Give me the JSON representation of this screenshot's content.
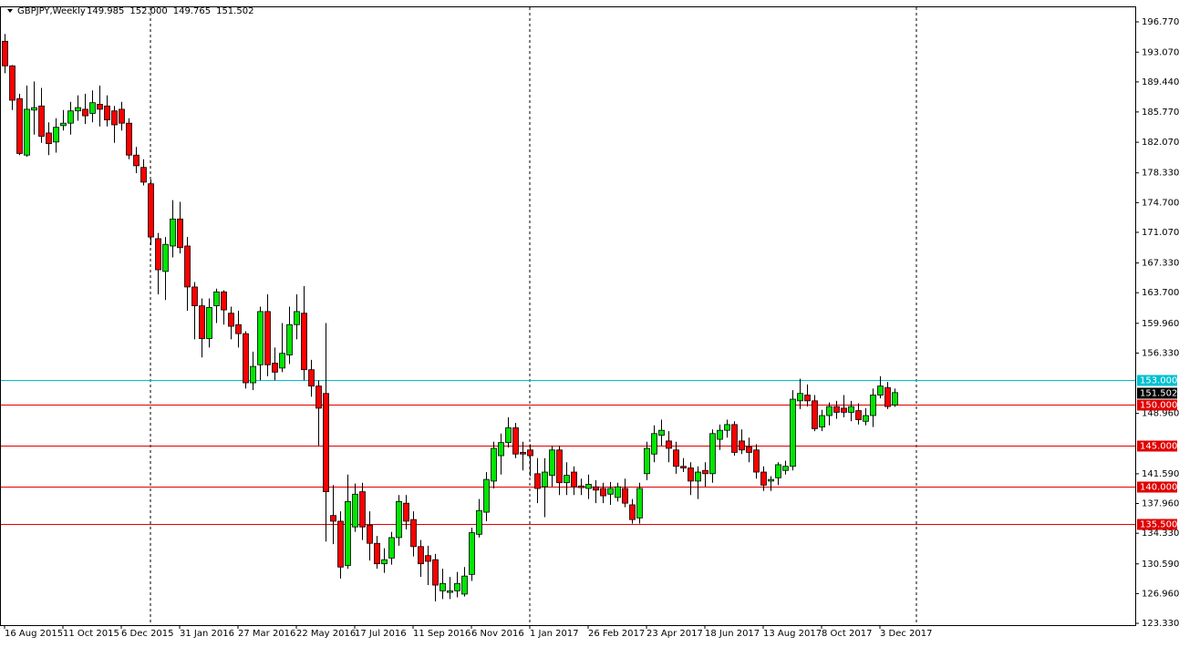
{
  "chart_data": {
    "type": "candlestick",
    "title": "GBPJPY,Weekly",
    "header_values": [
      {
        "value": 149.985,
        "label": "149.985"
      },
      {
        "value": 152.0,
        "label": "152.000"
      },
      {
        "value": 149.765,
        "label": "149.765"
      },
      {
        "value": 151.502,
        "label": "151.502"
      }
    ],
    "categories": [
      "16 Aug 2015",
      null,
      null,
      null,
      null,
      null,
      null,
      null,
      "11 Oct 2015",
      null,
      null,
      null,
      null,
      null,
      null,
      null,
      "6 Dec 2015",
      null,
      null,
      null,
      null,
      null,
      null,
      null,
      "31 Jan 2016",
      null,
      null,
      null,
      null,
      null,
      null,
      null,
      "27 Mar 2016",
      null,
      null,
      null,
      null,
      null,
      null,
      null,
      "22 May 2016",
      null,
      null,
      null,
      null,
      null,
      null,
      null,
      "17 Jul 2016",
      null,
      null,
      null,
      null,
      null,
      null,
      null,
      "11 Sep 2016",
      null,
      null,
      null,
      null,
      null,
      null,
      null,
      "6 Nov 2016",
      null,
      null,
      null,
      null,
      null,
      null,
      null,
      "1 Jan 2017",
      null,
      null,
      null,
      null,
      null,
      null,
      null,
      "26 Feb 2017",
      null,
      null,
      null,
      null,
      null,
      null,
      null,
      "23 Apr 2017",
      null,
      null,
      null,
      null,
      null,
      null,
      null,
      "18 Jun 2017",
      null,
      null,
      null,
      null,
      null,
      null,
      null,
      "13 Aug 2017",
      null,
      null,
      null,
      null,
      null,
      null,
      null,
      "8 Oct 2017",
      null,
      null,
      null,
      null,
      null,
      null,
      null,
      "3 Dec 2017",
      null,
      null
    ],
    "open": [
      194.4,
      191.4,
      187.4,
      180.5,
      186,
      186.5,
      183.2,
      182.1,
      184.1,
      184.4,
      185.9,
      186.1,
      185.6,
      186.7,
      186.5,
      185.9,
      186.1,
      184.4,
      180.5,
      179,
      177,
      170.3,
      166.3,
      169.4,
      172.7,
      169.4,
      164.4,
      162.1,
      158.1,
      162.1,
      163.8,
      161.2,
      159.8,
      158.7,
      152.7,
      154.9,
      161.4,
      155.1,
      154.5,
      156.1,
      159.8,
      161.2,
      154.3,
      152.3,
      151.4,
      136.5,
      135.8,
      130.4,
      135.1,
      139.4,
      135.3,
      133.1,
      130.6,
      131.3,
      133.8,
      138,
      136,
      132.7,
      131.6,
      131.1,
      127.3,
      127.1,
      127.3,
      126.9,
      129.3,
      134.2,
      136.9,
      140.7,
      143.8,
      145.4,
      147.2,
      144.2,
      144.5,
      141.6,
      140,
      141.4,
      144.5,
      140.5,
      141.8,
      140.1,
      139.8,
      140,
      139.8,
      139.1,
      138.7,
      139.8,
      137.8,
      136.2,
      141.6,
      144,
      146.3,
      145.6,
      144.5,
      142.5,
      142.3,
      140.7,
      142,
      141.6,
      145.8,
      146.9,
      147.6,
      145.6,
      144.9,
      144.5,
      141.8,
      140.7,
      141.1,
      142,
      142.5,
      150.5,
      151.2,
      150.5,
      147.3,
      148.7,
      149.8,
      149.6,
      149.1,
      149.3,
      148,
      148.7,
      151.2,
      152.1,
      149.985
    ],
    "high": [
      195.3,
      191.5,
      188,
      189,
      189.5,
      188.7,
      184.5,
      185,
      186,
      187,
      187.8,
      188,
      188.4,
      189,
      187.8,
      186.5,
      187,
      185,
      181.5,
      180,
      177.5,
      171,
      170.5,
      175,
      174.8,
      170.5,
      165,
      163,
      163,
      164.2,
      164,
      162,
      161.5,
      159,
      156.5,
      162,
      163.5,
      157,
      160,
      162,
      163.5,
      164.5,
      155.5,
      153,
      160,
      140.2,
      137,
      141.5,
      140.4,
      140.5,
      137,
      134,
      132.5,
      134.5,
      139,
      139,
      137,
      133.5,
      132.8,
      131.8,
      130,
      129,
      129.6,
      130.2,
      135,
      138.5,
      141.8,
      145.5,
      146.5,
      148.5,
      147.8,
      145.5,
      145.2,
      143.5,
      143.5,
      145,
      145,
      143,
      142.5,
      141,
      141.5,
      140.8,
      140.5,
      140.6,
      140.5,
      141,
      138.5,
      140.5,
      145.5,
      147.5,
      148.2,
      146.8,
      145.5,
      143.5,
      143,
      142.5,
      143,
      147,
      147.6,
      148.2,
      148,
      147,
      146,
      145.2,
      142.5,
      141.3,
      143,
      143.2,
      151.8,
      153.2,
      152.5,
      151.2,
      149.4,
      150.3,
      150.5,
      151.2,
      150.5,
      150.2,
      149.6,
      152,
      153.5,
      152.8,
      152.0
    ],
    "low": [
      190.5,
      186,
      180.5,
      180.3,
      183,
      182,
      180.5,
      180.8,
      183.5,
      183,
      184.7,
      184.3,
      184.5,
      184,
      184,
      182,
      183.5,
      180,
      178.3,
      176.8,
      169.5,
      163.5,
      162.8,
      168,
      168.5,
      161.5,
      158,
      155.8,
      157,
      160,
      159.8,
      158,
      157,
      152,
      151.8,
      153,
      153.5,
      153,
      154,
      155,
      158,
      153,
      151,
      145,
      133.3,
      133,
      128.8,
      130,
      134.5,
      133.5,
      131,
      130,
      129.5,
      130.5,
      132.8,
      134.8,
      131.5,
      129,
      128,
      126,
      126.3,
      126.3,
      126.5,
      126.6,
      128.5,
      133.8,
      135.8,
      139.8,
      141.5,
      144.8,
      143.5,
      142,
      141.3,
      138,
      136.3,
      140,
      139,
      139,
      139,
      139,
      138.5,
      138,
      138,
      137.8,
      138.2,
      137.5,
      135.5,
      135.5,
      140.8,
      143,
      145,
      143,
      141.6,
      141.8,
      139,
      138.5,
      140,
      140.5,
      144.5,
      146,
      143.8,
      144,
      143,
      141,
      139.5,
      139.5,
      140.2,
      141.5,
      142,
      149.5,
      149.8,
      146.8,
      146.8,
      147.5,
      148.3,
      148.5,
      148,
      147.6,
      147.5,
      147.3,
      150.8,
      149.5,
      149.765
    ],
    "close": [
      191.4,
      187.2,
      180.7,
      186.1,
      186.3,
      182.8,
      181.9,
      183.9,
      184.4,
      185.9,
      186.3,
      185.3,
      186.9,
      186.1,
      184.8,
      184.2,
      184.4,
      180.5,
      179.2,
      177.2,
      170.5,
      166.5,
      169.6,
      172.7,
      169.2,
      164.4,
      162.1,
      158.1,
      161.9,
      163.8,
      161.6,
      159.6,
      158.7,
      152.7,
      154.7,
      161.4,
      154.9,
      154,
      156.3,
      159.8,
      161.4,
      154.3,
      152.3,
      149.6,
      139.4,
      135.8,
      130.2,
      138.2,
      139.1,
      135.1,
      133.1,
      130.6,
      131.1,
      133.8,
      138.2,
      135.8,
      132.7,
      130.6,
      130.9,
      128,
      128.2,
      127.3,
      128.2,
      129.1,
      134.4,
      137.1,
      140.9,
      144.7,
      145.4,
      147.2,
      144,
      144,
      143.8,
      139.8,
      141.8,
      144.5,
      140.5,
      141.4,
      140,
      139.9,
      140.3,
      139.6,
      138.9,
      139.8,
      140,
      138,
      136,
      139.8,
      144.7,
      146.5,
      146.9,
      144.7,
      142.5,
      142.3,
      140.7,
      141.8,
      141.6,
      146.5,
      146.9,
      147.6,
      144.2,
      144.5,
      144.2,
      141.8,
      140.2,
      140.9,
      142.7,
      142.5,
      150.7,
      151.4,
      150.5,
      147.1,
      148.7,
      149.8,
      149.1,
      149.1,
      149.8,
      148.2,
      148.7,
      151.2,
      152.3,
      149.8,
      151.502
    ],
    "up_color": "#00e600",
    "down_color": "#ff0000",
    "ylim": [
      123.11,
      198.55
    ],
    "yticks": [
      {
        "value": 196.77,
        "label": "196.770"
      },
      {
        "value": 193.07,
        "label": "193.070"
      },
      {
        "value": 189.44,
        "label": "189.440"
      },
      {
        "value": 185.77,
        "label": "185.770"
      },
      {
        "value": 182.07,
        "label": "182.070"
      },
      {
        "value": 178.33,
        "label": "178.330"
      },
      {
        "value": 174.7,
        "label": "174.700"
      },
      {
        "value": 171.07,
        "label": "171.070"
      },
      {
        "value": 167.33,
        "label": "167.330"
      },
      {
        "value": 163.7,
        "label": "163.700"
      },
      {
        "value": 159.96,
        "label": "159.960"
      },
      {
        "value": 156.33,
        "label": "156.330"
      },
      {
        "value": 148.96,
        "label": "148.960"
      },
      {
        "value": 141.59,
        "label": "141.590"
      },
      {
        "value": 137.96,
        "label": "137.960"
      },
      {
        "value": 134.33,
        "label": "134.330"
      },
      {
        "value": 130.59,
        "label": "130.590"
      },
      {
        "value": 126.96,
        "label": "126.960"
      },
      {
        "value": 123.33,
        "label": "123.330"
      }
    ],
    "levels": [
      {
        "value": 153,
        "label": "153.000",
        "color": "#00c0d0"
      },
      {
        "value": 150,
        "label": "150.000",
        "color": "#e00000"
      },
      {
        "value": 145,
        "label": "145.000",
        "color": "#e00000"
      },
      {
        "value": 140,
        "label": "140.000",
        "color": "#e00000"
      },
      {
        "value": 135.5,
        "label": "135.500",
        "color": "#e00000"
      }
    ],
    "current_price": {
      "value": 151.502,
      "label": "151.502"
    }
  }
}
